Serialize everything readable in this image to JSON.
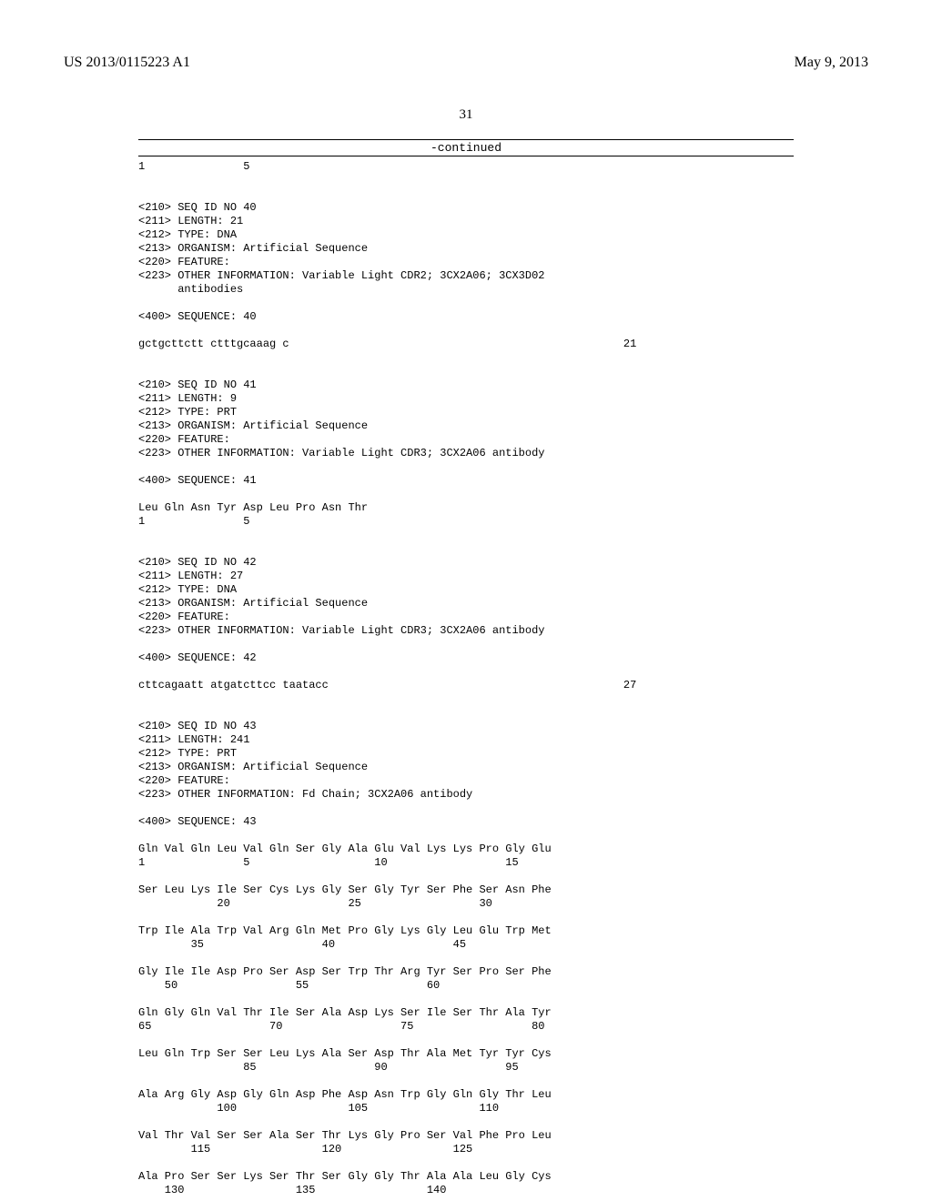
{
  "header": {
    "publication_number": "US 2013/0115223 A1",
    "publication_date": "May 9, 2013"
  },
  "page_number": "31",
  "continued_label": "-continued",
  "initial_posrow": "1               5",
  "sequences": [
    {
      "id_line": "<210> SEQ ID NO 40",
      "length_line": "<211> LENGTH: 21",
      "type_line": "<212> TYPE: DNA",
      "organism_line": "<213> ORGANISM: Artificial Sequence",
      "feature_line": "<220> FEATURE:",
      "other_info_line": "<223> OTHER INFORMATION: Variable Light CDR2; 3CX2A06; 3CX3D02",
      "other_info_cont": "      antibodies",
      "sequence_label": "<400> SEQUENCE: 40",
      "body_rows": [
        {
          "seq": "gctgcttctt ctttgcaaag c",
          "len": "21"
        }
      ]
    },
    {
      "id_line": "<210> SEQ ID NO 41",
      "length_line": "<211> LENGTH: 9",
      "type_line": "<212> TYPE: PRT",
      "organism_line": "<213> ORGANISM: Artificial Sequence",
      "feature_line": "<220> FEATURE:",
      "other_info_line": "<223> OTHER INFORMATION: Variable Light CDR3; 3CX2A06 antibody",
      "sequence_label": "<400> SEQUENCE: 41",
      "body_rows": [
        {
          "seq": "Leu Gln Asn Tyr Asp Leu Pro Asn Thr"
        },
        {
          "pos": "1               5"
        }
      ]
    },
    {
      "id_line": "<210> SEQ ID NO 42",
      "length_line": "<211> LENGTH: 27",
      "type_line": "<212> TYPE: DNA",
      "organism_line": "<213> ORGANISM: Artificial Sequence",
      "feature_line": "<220> FEATURE:",
      "other_info_line": "<223> OTHER INFORMATION: Variable Light CDR3; 3CX2A06 antibody",
      "sequence_label": "<400> SEQUENCE: 42",
      "body_rows": [
        {
          "seq": "cttcagaatt atgatcttcc taatacc",
          "len": "27"
        }
      ]
    },
    {
      "id_line": "<210> SEQ ID NO 43",
      "length_line": "<211> LENGTH: 241",
      "type_line": "<212> TYPE: PRT",
      "organism_line": "<213> ORGANISM: Artificial Sequence",
      "feature_line": "<220> FEATURE:",
      "other_info_line": "<223> OTHER INFORMATION: Fd Chain; 3CX2A06 antibody",
      "sequence_label": "<400> SEQUENCE: 43",
      "body_rows": [
        {
          "seq": "Gln Val Gln Leu Val Gln Ser Gly Ala Glu Val Lys Lys Pro Gly Glu"
        },
        {
          "pos": "1               5                   10                  15"
        },
        {
          "blank": true
        },
        {
          "seq": "Ser Leu Lys Ile Ser Cys Lys Gly Ser Gly Tyr Ser Phe Ser Asn Phe"
        },
        {
          "pos": "            20                  25                  30"
        },
        {
          "blank": true
        },
        {
          "seq": "Trp Ile Ala Trp Val Arg Gln Met Pro Gly Lys Gly Leu Glu Trp Met"
        },
        {
          "pos": "        35                  40                  45"
        },
        {
          "blank": true
        },
        {
          "seq": "Gly Ile Ile Asp Pro Ser Asp Ser Trp Thr Arg Tyr Ser Pro Ser Phe"
        },
        {
          "pos": "    50                  55                  60"
        },
        {
          "blank": true
        },
        {
          "seq": "Gln Gly Gln Val Thr Ile Ser Ala Asp Lys Ser Ile Ser Thr Ala Tyr"
        },
        {
          "pos": "65                  70                  75                  80"
        },
        {
          "blank": true
        },
        {
          "seq": "Leu Gln Trp Ser Ser Leu Lys Ala Ser Asp Thr Ala Met Tyr Tyr Cys"
        },
        {
          "pos": "                85                  90                  95"
        },
        {
          "blank": true
        },
        {
          "seq": "Ala Arg Gly Asp Gly Gln Asp Phe Asp Asn Trp Gly Gln Gly Thr Leu"
        },
        {
          "pos": "            100                 105                 110"
        },
        {
          "blank": true
        },
        {
          "seq": "Val Thr Val Ser Ser Ala Ser Thr Lys Gly Pro Ser Val Phe Pro Leu"
        },
        {
          "pos": "        115                 120                 125"
        },
        {
          "blank": true
        },
        {
          "seq": "Ala Pro Ser Ser Lys Ser Thr Ser Gly Gly Thr Ala Ala Leu Gly Cys"
        },
        {
          "pos": "    130                 135                 140"
        }
      ]
    }
  ],
  "layout": {
    "len_col": 74
  }
}
